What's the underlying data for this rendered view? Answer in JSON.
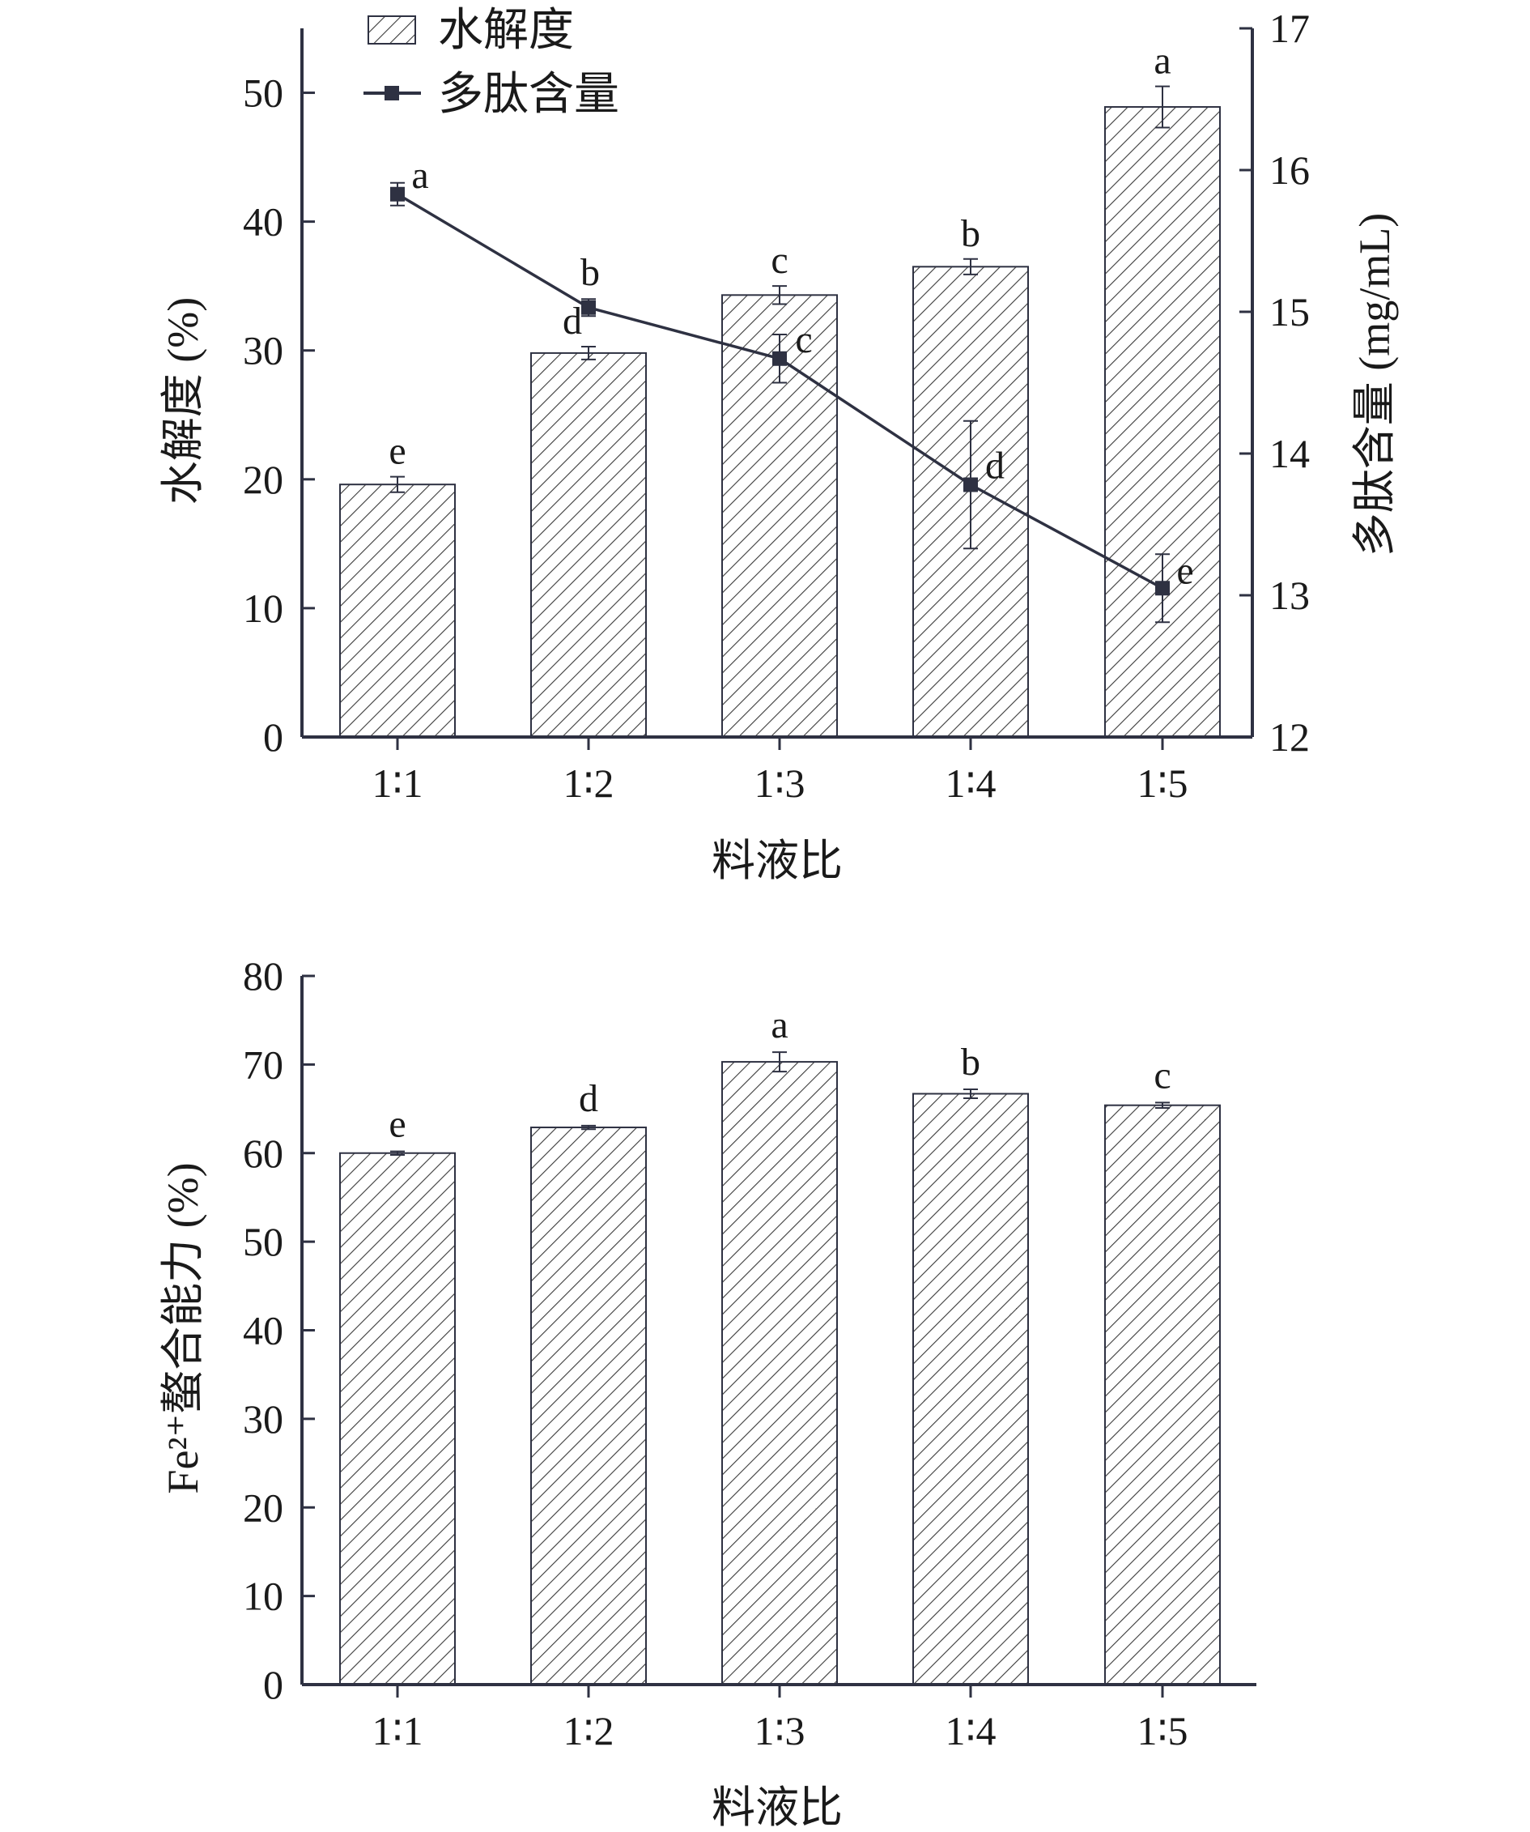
{
  "colors": {
    "axis": "#2e3142",
    "line": "#2e3142",
    "hatch": "#3a3a3a",
    "bar_fill": "#ffffff",
    "text": "#1a1a1a"
  },
  "chart_data": [
    {
      "type": "bar",
      "categories": [
        "1∶1",
        "1∶2",
        "1∶3",
        "1∶4",
        "1∶5"
      ],
      "xlabel": "料液比",
      "ylabel": "水解度 (%)",
      "ylim": [
        0,
        55
      ],
      "yticks": [
        0,
        10,
        20,
        30,
        40,
        50
      ],
      "y2label": "多肽含量 (mg/mL)",
      "y2lim": [
        12,
        17
      ],
      "y2ticks": [
        12,
        13,
        14,
        15,
        16,
        17
      ],
      "legend_position": "top-left",
      "grid": false,
      "series": [
        {
          "name": "水解度",
          "kind": "bar",
          "axis": "left",
          "pattern": "hatched",
          "values": [
            19.6,
            29.8,
            34.3,
            36.5,
            48.9
          ],
          "errors": [
            0.6,
            0.5,
            0.7,
            0.6,
            1.6
          ],
          "letters": [
            "e",
            "d",
            "c",
            "b",
            "a"
          ]
        },
        {
          "name": "多肽含量",
          "kind": "line",
          "marker": "square",
          "axis": "right",
          "values": [
            15.83,
            15.03,
            14.67,
            13.78,
            13.05
          ],
          "errors": [
            0.08,
            0.06,
            0.17,
            0.45,
            0.24
          ],
          "letters": [
            "a",
            "b",
            "c",
            "d",
            "e"
          ]
        }
      ]
    },
    {
      "type": "bar",
      "categories": [
        "1∶1",
        "1∶2",
        "1∶3",
        "1∶4",
        "1∶5"
      ],
      "xlabel": "料液比",
      "ylabel": "Fe²⁺螯合能力 (%)",
      "ylim": [
        0,
        80
      ],
      "yticks": [
        0,
        10,
        20,
        30,
        40,
        50,
        60,
        70,
        80
      ],
      "legend_position": "none",
      "grid": false,
      "series": [
        {
          "kind": "bar",
          "pattern": "hatched",
          "values": [
            60.0,
            62.9,
            70.3,
            66.7,
            65.4
          ],
          "errors": [
            0.2,
            0.2,
            1.1,
            0.5,
            0.3
          ],
          "letters": [
            "e",
            "d",
            "a",
            "b",
            "c"
          ]
        }
      ]
    }
  ]
}
